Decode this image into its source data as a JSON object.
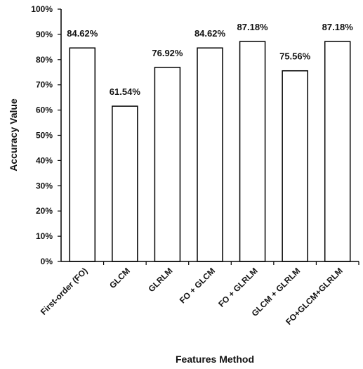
{
  "chart_data": {
    "type": "bar",
    "categories": [
      "First-order (FO)",
      "GLCM",
      "GLRLM",
      "FO + GLCM",
      "FO + GLRLM",
      "GLCM + GLRLM",
      "FO+GLCM+GLRLM"
    ],
    "values": [
      84.62,
      61.54,
      76.92,
      84.62,
      87.18,
      75.56,
      87.18
    ],
    "data_labels": [
      "84.62%",
      "61.54%",
      "76.92%",
      "84.62%",
      "87.18%",
      "75.56%",
      "87.18%"
    ],
    "title": "",
    "xlabel": "Features Method",
    "ylabel": "Accuracy Value",
    "ylim": [
      0,
      100
    ],
    "yticks": [
      "0%",
      "10%",
      "20%",
      "30%",
      "40%",
      "50%",
      "60%",
      "70%",
      "80%",
      "90%",
      "100%"
    ],
    "grid": false,
    "bar_fill": "#ffffff",
    "bar_stroke": "#000000"
  }
}
